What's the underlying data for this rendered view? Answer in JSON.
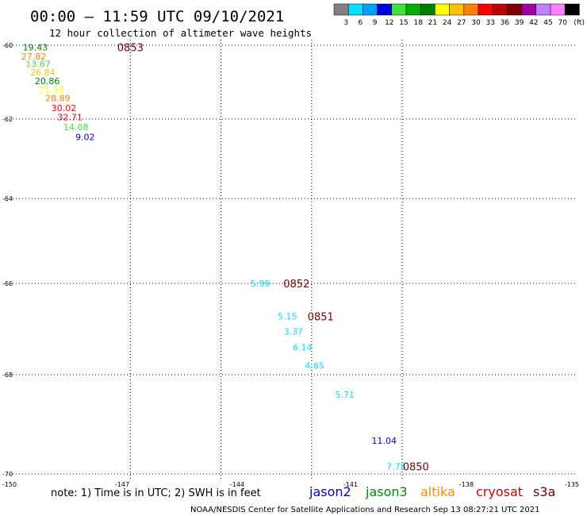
{
  "header": {
    "title": "00:00 – 11:59 UTC 09/10/2021",
    "subtitle": "12 hour collection of altimeter wave heights"
  },
  "legend": {
    "swatches": [
      "#808080",
      "#00e0ff",
      "#00a0ff",
      "#0000e0",
      "#40e040",
      "#00b000",
      "#008000",
      "#ffff00",
      "#ffc000",
      "#ff8000",
      "#ff0000",
      "#c00000",
      "#800000",
      "#a000a0",
      "#c080ff",
      "#ff80ff",
      "#000000"
    ],
    "labels": [
      "3",
      "6",
      "9",
      "12",
      "15",
      "18",
      "21",
      "24",
      "27",
      "30",
      "33",
      "36",
      "39",
      "42",
      "45",
      "70"
    ],
    "unit": "(ft)"
  },
  "note": "note: 1) Time is in UTC; 2) SWH is in feet",
  "satellites": [
    {
      "name": "jason2",
      "color": "#0000cc"
    },
    {
      "name": "jason3",
      "color": "#008800"
    },
    {
      "name": "altika",
      "color": "#ff8800"
    },
    {
      "name": "cryosat",
      "color": "#cc0000"
    },
    {
      "name": "s3a",
      "color": "#7a0000"
    }
  ],
  "credit": "NOAA/NESDIS Center for Satellite Applications and Research   Sep 13 08:27:21 UTC 2021",
  "chart_data": {
    "type": "scatter",
    "x_ticks": [
      "-150",
      "-147",
      "-144",
      "-141",
      "-138",
      "-135"
    ],
    "y_ticks": [
      "-60",
      "-62",
      "-64",
      "-66",
      "-68",
      "-70"
    ],
    "grid": true,
    "points": [
      {
        "lon": -150.15,
        "lat": -60.05,
        "value": "19.43",
        "color": "#008000"
      },
      {
        "lon": -150.2,
        "lat": -60.3,
        "value": "27.82",
        "color": "#ff8000"
      },
      {
        "lon": -150.05,
        "lat": -60.5,
        "value": "13.67",
        "color": "#40e040"
      },
      {
        "lon": -149.9,
        "lat": -60.73,
        "value": "26.84",
        "color": "#ffc000"
      },
      {
        "lon": -149.75,
        "lat": -60.97,
        "value": "20.86",
        "color": "#008000"
      },
      {
        "lon": -149.6,
        "lat": -61.2,
        "value": "21.34",
        "color": "#ffff00"
      },
      {
        "lon": -149.4,
        "lat": -61.43,
        "value": "28.89",
        "color": "#ff8000"
      },
      {
        "lon": -149.2,
        "lat": -61.7,
        "value": "30.02",
        "color": "#ff0000"
      },
      {
        "lon": -149.0,
        "lat": -61.95,
        "value": "32.71",
        "color": "#ff0000"
      },
      {
        "lon": -148.8,
        "lat": -62.2,
        "value": "14.08",
        "color": "#40e040"
      },
      {
        "lon": -148.5,
        "lat": -62.45,
        "value": "9.02",
        "color": "#0000e0"
      },
      {
        "lon": -142.7,
        "lat": -66.0,
        "value": "5.99",
        "color": "#00e0ff"
      },
      {
        "lon": -141.8,
        "lat": -66.72,
        "value": "5.15",
        "color": "#00e0ff"
      },
      {
        "lon": -141.6,
        "lat": -67.05,
        "value": "3.37",
        "color": "#00e0ff"
      },
      {
        "lon": -141.3,
        "lat": -67.4,
        "value": "6.14",
        "color": "#00e0ff"
      },
      {
        "lon": -140.9,
        "lat": -67.8,
        "value": "4.65",
        "color": "#00e0ff"
      },
      {
        "lon": -139.9,
        "lat": -68.4,
        "value": "5.71",
        "color": "#00e0ff"
      },
      {
        "lon": -138.6,
        "lat": -69.33,
        "value": "11.04",
        "color": "#0000e0"
      },
      {
        "lon": -138.2,
        "lat": -69.85,
        "value": "7.78",
        "color": "#00e0ff"
      }
    ],
    "pass_labels": [
      {
        "lon": -147.0,
        "lat": -60.05,
        "text": "0853"
      },
      {
        "lon": -141.5,
        "lat": -66.0,
        "text": "0852"
      },
      {
        "lon": -140.7,
        "lat": -66.72,
        "text": "0851"
      },
      {
        "lon": -137.55,
        "lat": -69.85,
        "text": "0850"
      }
    ]
  }
}
